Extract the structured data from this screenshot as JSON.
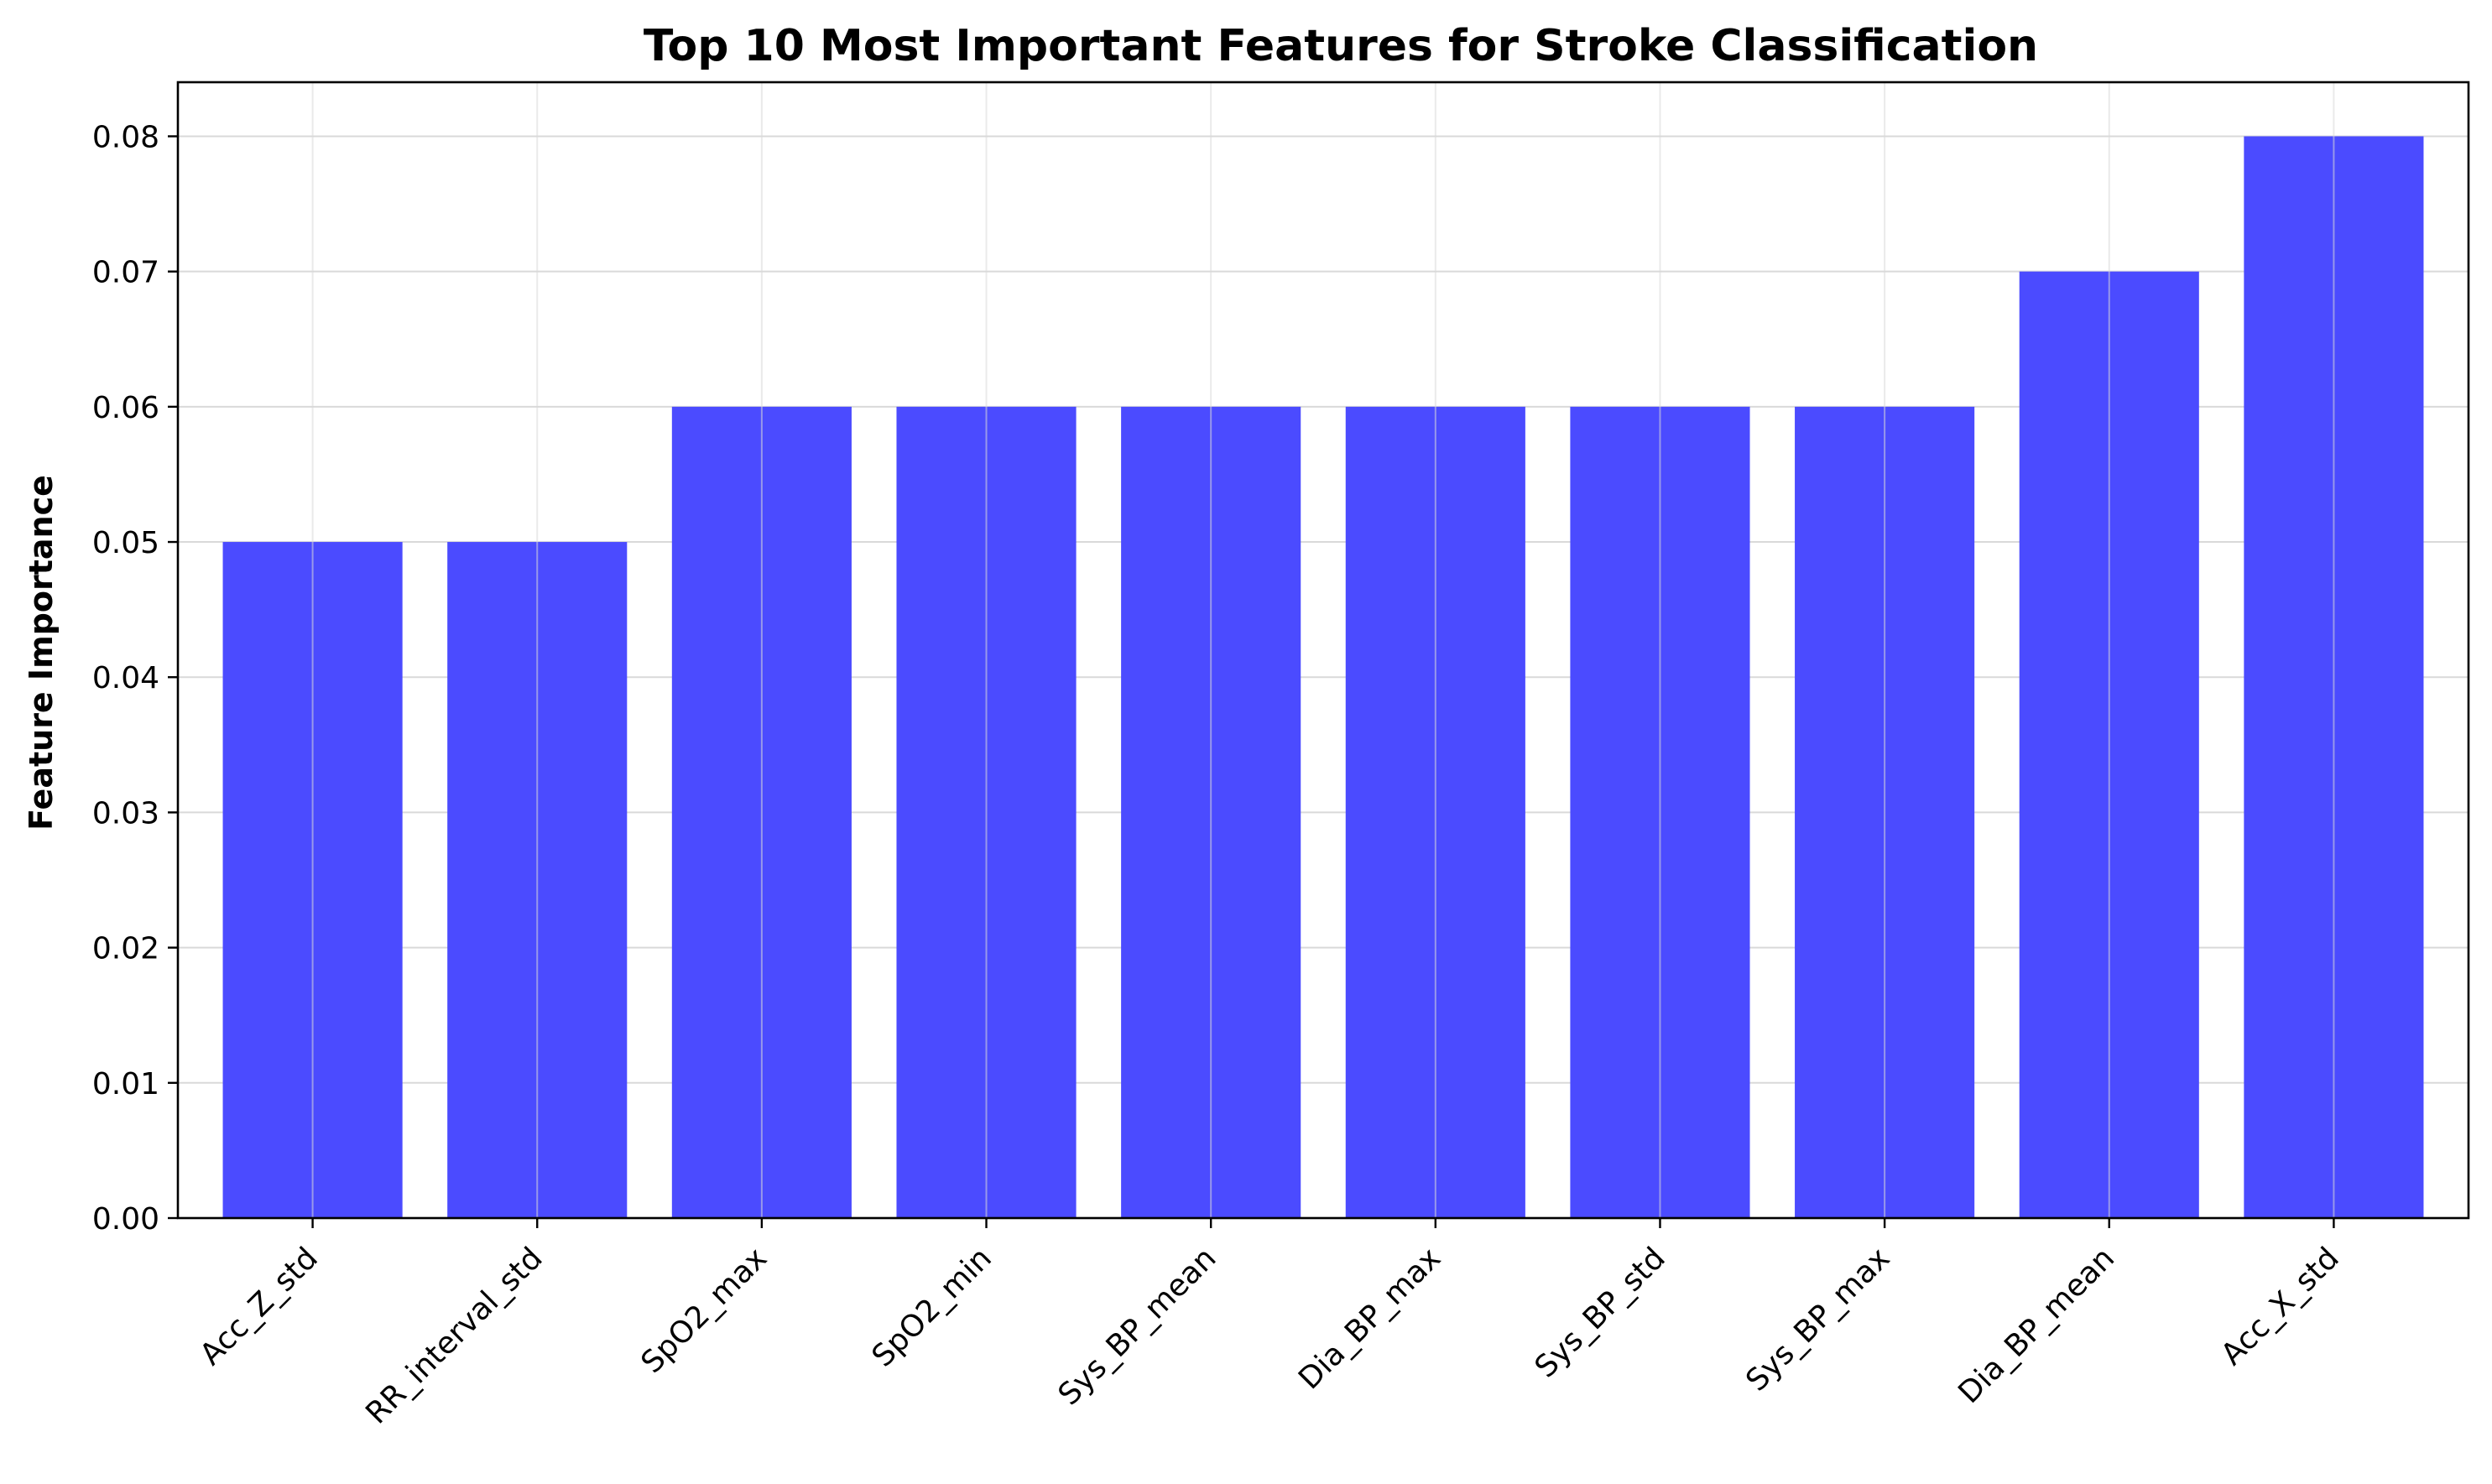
{
  "chart_data": {
    "type": "bar",
    "title": "Top 10 Most Important Features for Stroke Classification",
    "xlabel": "",
    "ylabel": "Feature Importance",
    "categories": [
      "Acc_Z_std",
      "RR_interval_std",
      "SpO2_max",
      "SpO2_min",
      "Sys_BP_mean",
      "Dia_BP_max",
      "Sys_BP_std",
      "Sys_BP_max",
      "Dia_BP_mean",
      "Acc_X_std"
    ],
    "values": [
      0.05,
      0.05,
      0.06,
      0.06,
      0.06,
      0.06,
      0.06,
      0.06,
      0.07,
      0.08
    ],
    "ylim": [
      0,
      0.084
    ],
    "yticks": [
      "0.00",
      "0.01",
      "0.02",
      "0.03",
      "0.04",
      "0.05",
      "0.06",
      "0.07",
      "0.08"
    ],
    "bar_color": "#4b4bff",
    "grid": true,
    "xtick_rotation": "45 degrees"
  }
}
